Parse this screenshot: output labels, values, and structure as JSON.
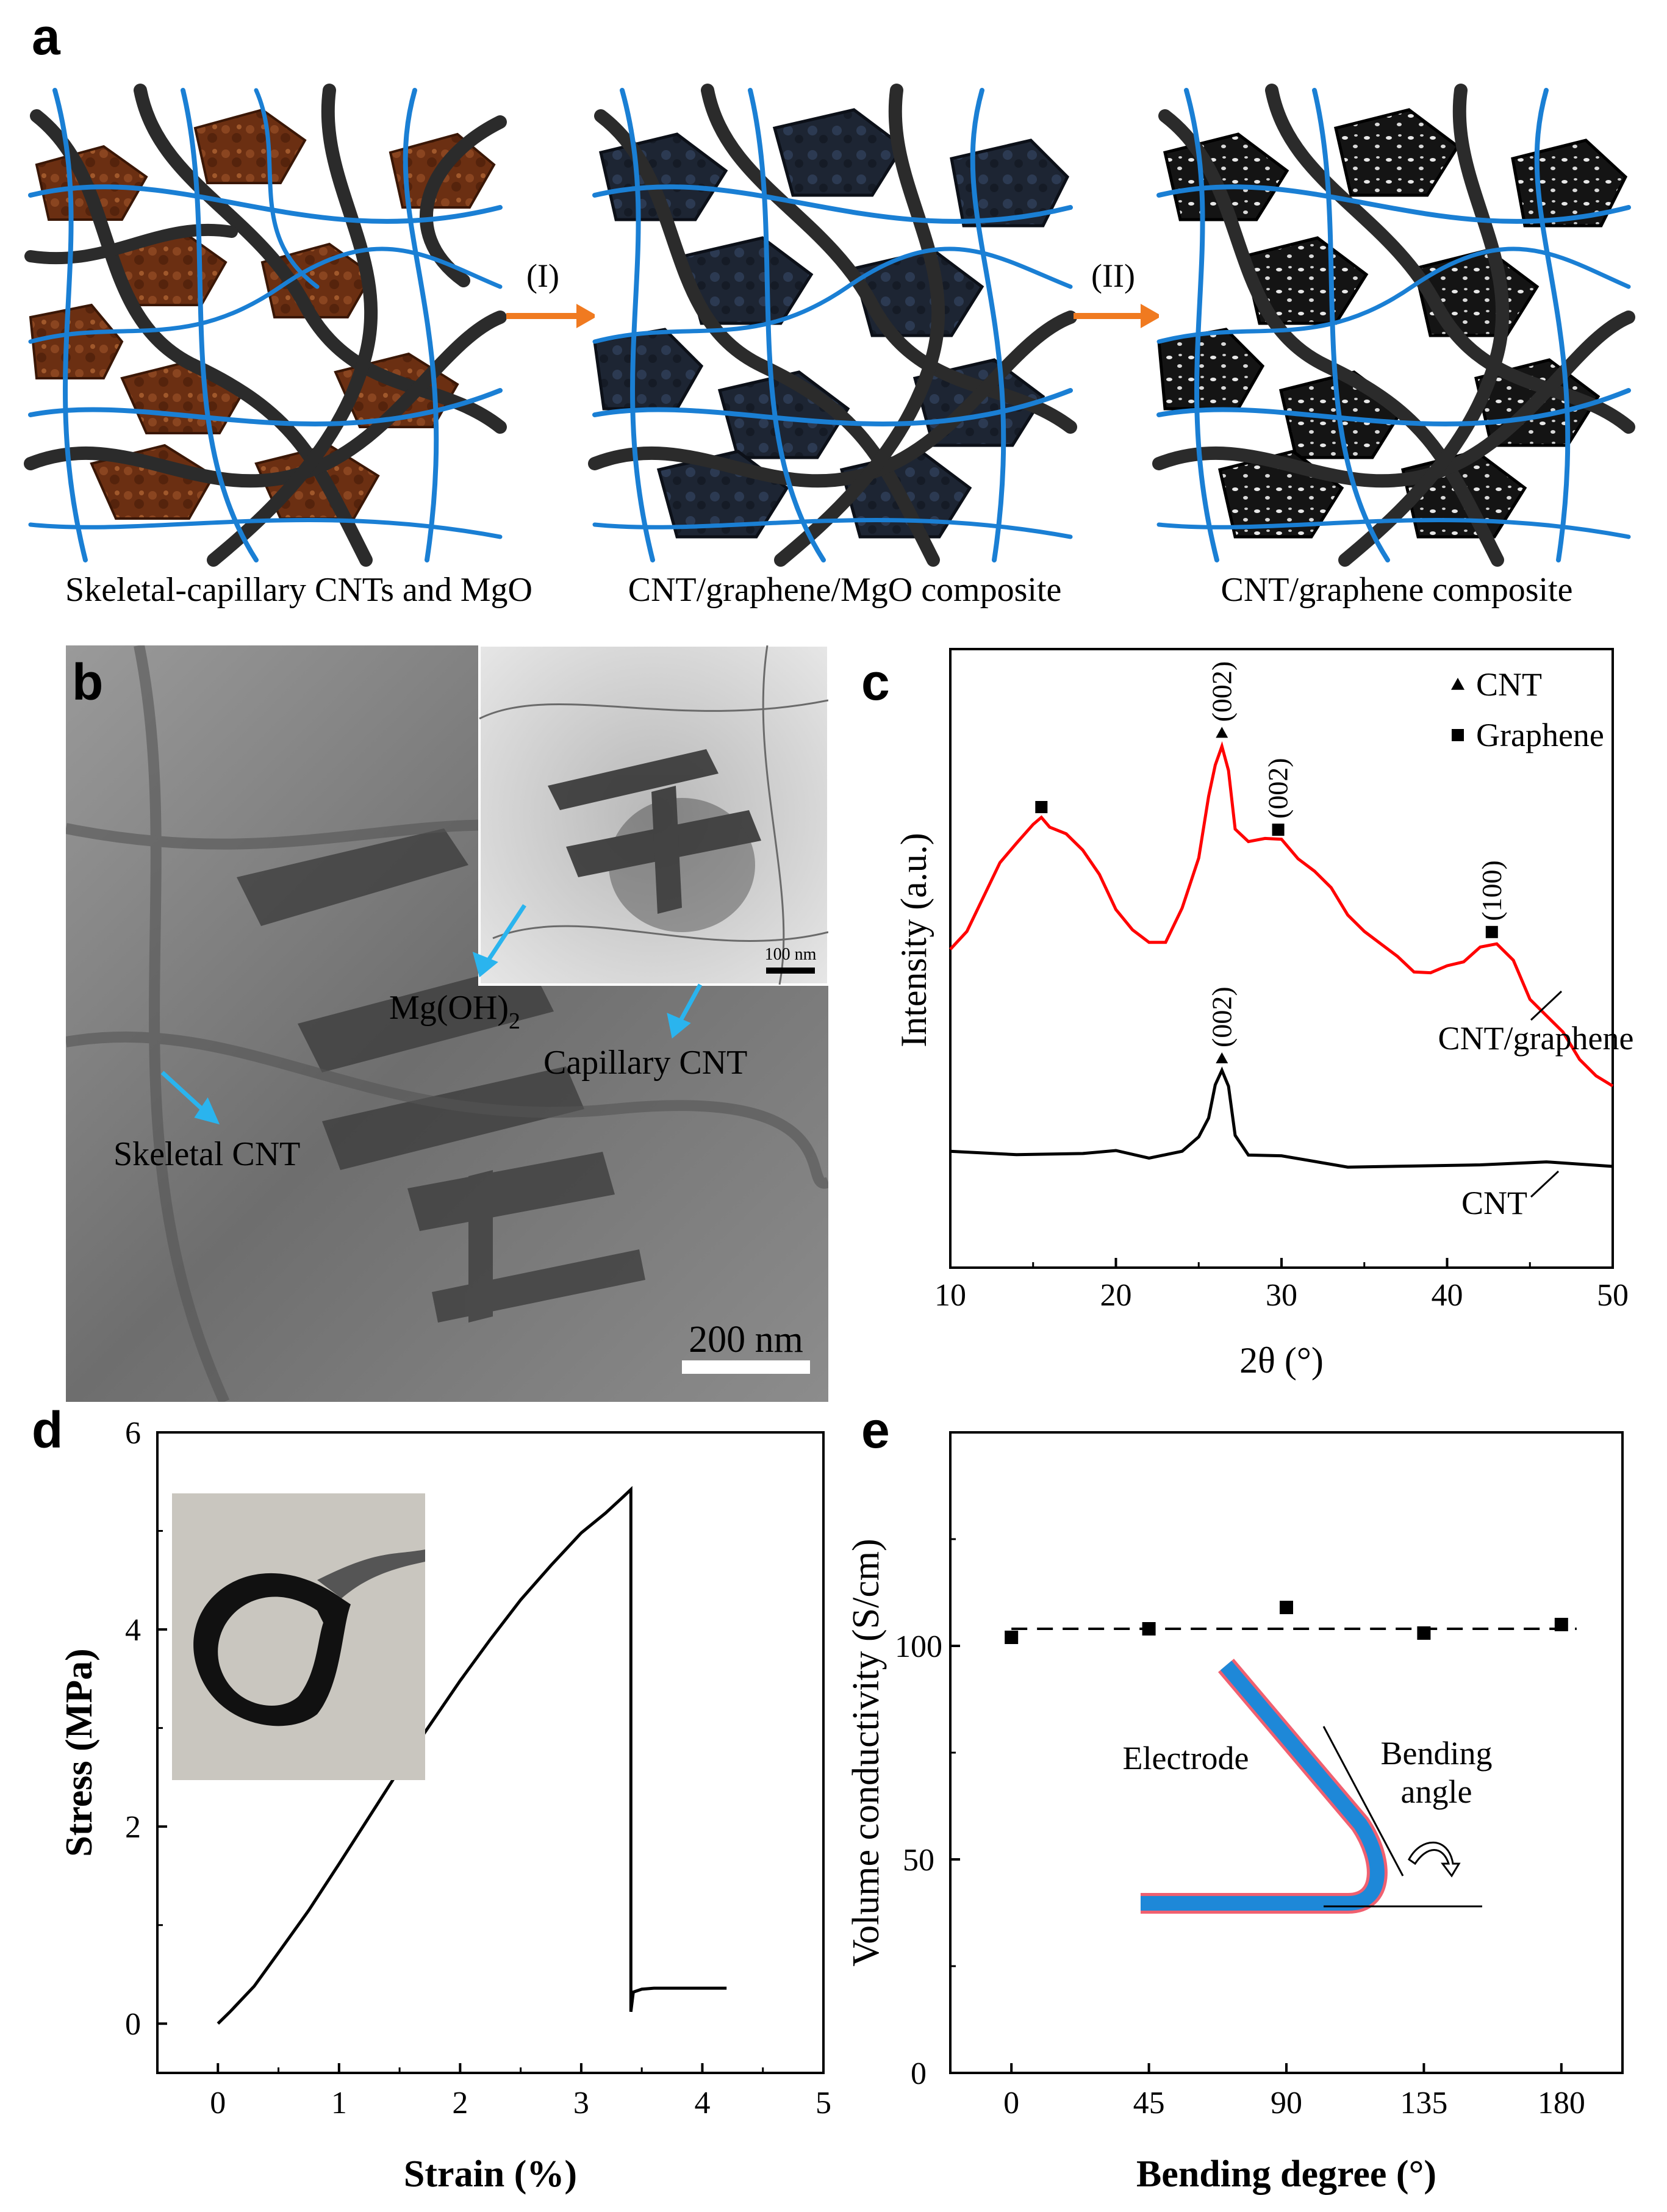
{
  "figure": {
    "panel_a": {
      "letter": "a",
      "steps": [
        "(I)",
        "(II)"
      ],
      "captions": [
        "Skeletal-capillary CNTs and MgO",
        "CNT/graphene/MgO composite",
        "CNT/graphene composite"
      ]
    },
    "panel_b": {
      "letter": "b",
      "inset_scale": "100 nm",
      "main_scale": "200 nm",
      "labels": {
        "mgoh2": "Mg(OH)",
        "mgoh2_sub": "2",
        "capillary": "Capillary CNT",
        "skeletal": "Skeletal CNT"
      }
    },
    "panel_c": {
      "letter": "c"
    },
    "panel_d": {
      "letter": "d"
    },
    "panel_e": {
      "letter": "e"
    }
  },
  "chart_data": [
    {
      "panel": "c",
      "type": "line",
      "xlabel": "2θ (°)",
      "ylabel": "Intensity (a.u.)",
      "xlim": [
        10,
        50
      ],
      "x_ticks": [
        10,
        20,
        30,
        40,
        50
      ],
      "legend": [
        {
          "marker": "triangle",
          "label": "CNT"
        },
        {
          "marker": "square",
          "label": "Graphene"
        }
      ],
      "legend_position": "top-right",
      "series": [
        {
          "name": "CNT/graphene",
          "color": "#ff0000",
          "x": [
            10,
            11,
            12,
            13,
            14,
            15,
            15.5,
            16,
            17,
            18,
            19,
            20,
            21,
            22,
            23,
            24,
            25,
            25.6,
            26,
            26.4,
            26.8,
            27.2,
            28,
            29,
            30,
            31,
            32,
            33,
            34,
            35,
            36,
            37,
            38,
            39,
            40,
            41,
            42,
            43,
            44,
            45,
            46,
            47,
            48,
            49,
            50
          ],
          "y": [
            0.42,
            0.47,
            0.55,
            0.63,
            0.7,
            0.74,
            0.75,
            0.745,
            0.72,
            0.67,
            0.6,
            0.53,
            0.47,
            0.43,
            0.45,
            0.53,
            0.65,
            0.8,
            0.9,
            0.94,
            0.87,
            0.74,
            0.7,
            0.7,
            0.69,
            0.66,
            0.62,
            0.57,
            0.52,
            0.47,
            0.43,
            0.39,
            0.37,
            0.36,
            0.37,
            0.4,
            0.43,
            0.43,
            0.38,
            0.3,
            0.25,
            0.2,
            0.15,
            0.1,
            0.07
          ]
        },
        {
          "name": "CNT",
          "color": "#000000",
          "x": [
            10,
            14,
            18,
            20,
            22,
            24,
            25,
            25.6,
            26,
            26.4,
            26.8,
            27.2,
            28,
            30,
            34,
            38,
            42,
            46,
            50
          ],
          "y": [
            0.04,
            0.035,
            0.03,
            0.03,
            0.03,
            0.04,
            0.07,
            0.14,
            0.22,
            0.25,
            0.2,
            0.09,
            0.03,
            0.02,
            0.01,
            0.005,
            0.0,
            0.0,
            0.0
          ]
        }
      ],
      "annotations": [
        {
          "text": "(002)",
          "marker": "triangle",
          "x": 26.4,
          "series": "CNT/graphene"
        },
        {
          "text": "(002)",
          "marker": "square",
          "x": 29.8,
          "series": "CNT/graphene"
        },
        {
          "text": "(100)",
          "marker": "square",
          "x": 42.7,
          "series": "CNT/graphene"
        },
        {
          "text": "",
          "marker": "square",
          "x": 15.5,
          "series": "CNT/graphene"
        },
        {
          "text": "(002)",
          "marker": "triangle",
          "x": 26.4,
          "series": "CNT"
        }
      ]
    },
    {
      "panel": "d",
      "type": "line",
      "xlabel": "Strain (%)",
      "ylabel": "Stress (MPa)",
      "xlim": [
        -0.5,
        5
      ],
      "ylim": [
        -0.5,
        6
      ],
      "x_ticks": [
        0,
        1,
        2,
        3,
        4,
        5
      ],
      "y_ticks": [
        0,
        2,
        4,
        6
      ],
      "series": [
        {
          "name": "",
          "x": [
            0,
            0.1,
            0.3,
            0.5,
            0.75,
            1.0,
            1.25,
            1.5,
            1.75,
            2.0,
            2.25,
            2.5,
            2.75,
            3.0,
            3.2,
            3.35,
            3.41,
            3.41,
            3.43,
            3.5,
            3.6,
            3.8,
            4.0,
            4.2
          ],
          "y": [
            0,
            0.12,
            0.38,
            0.72,
            1.15,
            1.62,
            2.1,
            2.58,
            3.03,
            3.48,
            3.9,
            4.3,
            4.65,
            4.98,
            5.18,
            5.35,
            5.42,
            0.12,
            0.32,
            0.35,
            0.36,
            0.36,
            0.36,
            0.36
          ]
        }
      ]
    },
    {
      "panel": "e",
      "type": "scatter",
      "xlabel": "Bending degree (°)",
      "ylabel": "Volume conductivity (S/cm)",
      "xlim": [
        -20,
        200
      ],
      "ylim": [
        0,
        150
      ],
      "x_ticks": [
        0,
        45,
        90,
        135,
        180
      ],
      "y_ticks": [
        0,
        50,
        100
      ],
      "x": [
        0,
        45,
        90,
        135,
        180
      ],
      "y": [
        102,
        104,
        109,
        103,
        105
      ],
      "reference_line": {
        "y": 104,
        "style": "dashed"
      },
      "inset": {
        "electrode_label": "Electrode",
        "angle_label_1": "Bending",
        "angle_label_2": "angle"
      }
    }
  ]
}
